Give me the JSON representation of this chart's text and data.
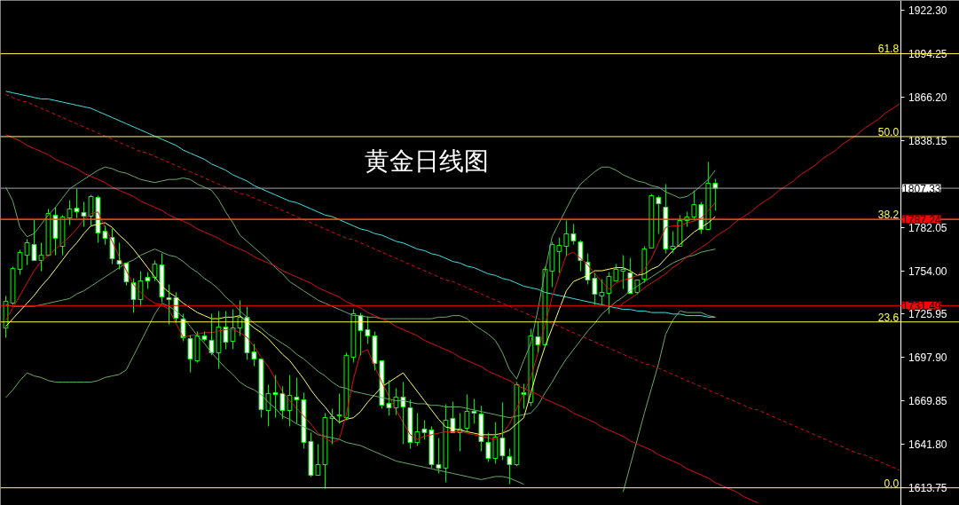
{
  "chart_data": {
    "type": "candlestick",
    "title": "黄金日线图",
    "color": "#00ff00",
    "tick_labels": "y",
    "grid": false,
    "ylim": [
      1602.3,
      1928.7
    ],
    "yticks": [
      {
        "value": 1922.3,
        "label": "1922.30"
      },
      {
        "value": 1894.25,
        "label": "1894.25"
      },
      {
        "value": 1866.2,
        "label": "1866.20"
      },
      {
        "value": 1838.15,
        "label": "1838.15"
      },
      {
        "value": 1782.05,
        "label": "1782.05"
      },
      {
        "value": 1754.0,
        "label": "1754.00"
      },
      {
        "value": 1725.95,
        "label": "1725.95"
      },
      {
        "value": 1697.9,
        "label": "1697.90"
      },
      {
        "value": 1669.85,
        "label": "1669.85"
      },
      {
        "value": 1641.8,
        "label": "1641.80"
      },
      {
        "value": 1613.75,
        "label": "1613.75"
      }
    ],
    "categories": [
      null,
      null,
      null,
      null,
      null,
      null,
      null,
      null,
      null,
      null,
      null,
      null,
      null,
      null,
      null,
      null,
      null,
      null,
      null,
      null,
      null,
      null,
      null,
      null,
      null,
      null,
      null,
      null,
      null,
      null,
      null,
      null,
      null,
      null,
      null,
      null,
      null,
      null,
      null,
      null,
      null,
      null,
      null,
      null,
      null,
      null,
      null,
      null,
      null,
      null,
      null,
      null,
      null,
      null,
      null,
      null,
      null,
      null,
      null,
      null,
      null,
      null,
      null,
      null,
      null,
      null,
      null,
      null,
      null,
      null,
      null,
      null,
      null,
      null,
      null,
      null,
      null,
      null,
      null,
      null,
      null,
      null,
      null,
      null,
      null,
      null,
      null,
      null,
      null,
      null,
      null,
      null,
      null,
      null,
      null,
      null,
      null,
      null,
      null,
      null,
      null,
      null,
      null,
      null,
      null,
      null,
      null,
      null,
      null,
      null,
      null,
      null,
      null,
      null,
      null,
      null,
      null,
      null,
      null,
      null,
      null,
      null,
      null,
      null,
      null,
      null,
      null
    ],
    "ohlc": [
      [
        1717.0,
        1737.7,
        1710.7,
        1734.2
      ],
      [
        1733.1,
        1756.6,
        1731.9,
        1755.4
      ],
      [
        1754.9,
        1767.5,
        1751.4,
        1765.8
      ],
      [
        1764.0,
        1774.4,
        1757.7,
        1772.1
      ],
      [
        1770.9,
        1787.0,
        1760.6,
        1760.6
      ],
      [
        1760.6,
        1772.1,
        1753.7,
        1764.0
      ],
      [
        1764.0,
        1793.9,
        1763.5,
        1791.0
      ],
      [
        1789.9,
        1795.0,
        1764.0,
        1774.9
      ],
      [
        1769.8,
        1789.9,
        1764.0,
        1788.7
      ],
      [
        1788.1,
        1799.6,
        1783.5,
        1793.9
      ],
      [
        1794.4,
        1807.0,
        1788.1,
        1792.1
      ],
      [
        1791.6,
        1798.5,
        1782.4,
        1789.3
      ],
      [
        1789.3,
        1803.0,
        1782.4,
        1801.9
      ],
      [
        1801.3,
        1802.5,
        1772.1,
        1778.4
      ],
      [
        1779.5,
        1783.0,
        1770.9,
        1774.9
      ],
      [
        1775.5,
        1781.3,
        1758.3,
        1761.7
      ],
      [
        1760.6,
        1772.1,
        1754.9,
        1758.3
      ],
      [
        1758.9,
        1758.9,
        1744.5,
        1746.8
      ],
      [
        1746.2,
        1749.1,
        1726.8,
        1735.4
      ],
      [
        1735.4,
        1753.7,
        1730.8,
        1747.4
      ],
      [
        1749.7,
        1753.1,
        1742.2,
        1747.4
      ],
      [
        1749.7,
        1760.6,
        1747.4,
        1758.3
      ],
      [
        1757.7,
        1765.2,
        1733.6,
        1737.1
      ],
      [
        1736.5,
        1745.1,
        1719.3,
        1735.4
      ],
      [
        1736.5,
        1740.0,
        1720.5,
        1723.3
      ],
      [
        1722.8,
        1726.2,
        1708.4,
        1710.7
      ],
      [
        1710.1,
        1712.4,
        1688.3,
        1696.9
      ],
      [
        1695.8,
        1714.7,
        1694.6,
        1711.9
      ],
      [
        1711.9,
        1714.7,
        1708.4,
        1709.6
      ],
      [
        1709.0,
        1726.2,
        1699.3,
        1701.0
      ],
      [
        1701.0,
        1727.9,
        1690.6,
        1717.6
      ],
      [
        1717.6,
        1727.9,
        1703.3,
        1707.8
      ],
      [
        1708.4,
        1729.1,
        1703.3,
        1717.0
      ],
      [
        1717.0,
        1734.8,
        1711.9,
        1723.9
      ],
      [
        1723.9,
        1730.8,
        1696.4,
        1701.0
      ],
      [
        1701.5,
        1706.7,
        1692.3,
        1696.9
      ],
      [
        1696.9,
        1696.9,
        1659.1,
        1664.3
      ],
      [
        1663.7,
        1680.3,
        1653.4,
        1674.6
      ],
      [
        1675.2,
        1686.6,
        1659.1,
        1674.0
      ],
      [
        1674.6,
        1679.2,
        1658.0,
        1663.7
      ],
      [
        1663.7,
        1686.6,
        1653.4,
        1673.4
      ],
      [
        1672.3,
        1684.9,
        1655.1,
        1670.6
      ],
      [
        1670.6,
        1675.2,
        1639.0,
        1643.0
      ],
      [
        1643.6,
        1649.4,
        1620.7,
        1621.8
      ],
      [
        1621.8,
        1641.9,
        1621.8,
        1628.7
      ],
      [
        1628.7,
        1662.0,
        1613.2,
        1659.1
      ],
      [
        1658.5,
        1664.8,
        1641.9,
        1659.6
      ],
      [
        1660.3,
        1674.6,
        1655.1,
        1660.8
      ],
      [
        1659.1,
        1701.0,
        1657.4,
        1699.3
      ],
      [
        1698.1,
        1729.1,
        1694.6,
        1726.2
      ],
      [
        1725.1,
        1726.8,
        1699.3,
        1715.3
      ],
      [
        1715.9,
        1724.5,
        1706.7,
        1711.9
      ],
      [
        1711.9,
        1714.7,
        1689.5,
        1694.1
      ],
      [
        1695.8,
        1695.8,
        1664.8,
        1667.1
      ],
      [
        1668.3,
        1683.2,
        1660.3,
        1665.4
      ],
      [
        1665.4,
        1678.0,
        1660.8,
        1672.3
      ],
      [
        1672.3,
        1682.1,
        1641.9,
        1666.0
      ],
      [
        1665.4,
        1670.6,
        1639.0,
        1643.0
      ],
      [
        1643.0,
        1662.0,
        1640.8,
        1649.9
      ],
      [
        1651.7,
        1657.4,
        1644.8,
        1649.4
      ],
      [
        1651.1,
        1653.4,
        1626.4,
        1628.7
      ],
      [
        1628.7,
        1645.9,
        1623.0,
        1626.4
      ],
      [
        1626.4,
        1667.7,
        1617.2,
        1657.4
      ],
      [
        1658.5,
        1669.4,
        1649.4,
        1649.4
      ],
      [
        1649.4,
        1662.0,
        1637.3,
        1651.7
      ],
      [
        1652.2,
        1674.0,
        1649.4,
        1663.1
      ],
      [
        1663.1,
        1671.2,
        1655.1,
        1662.0
      ],
      [
        1661.4,
        1666.6,
        1637.3,
        1643.6
      ],
      [
        1643.0,
        1649.4,
        1630.4,
        1632.7
      ],
      [
        1632.7,
        1656.2,
        1629.3,
        1646.5
      ],
      [
        1645.9,
        1668.9,
        1631.6,
        1634.4
      ],
      [
        1633.9,
        1639.0,
        1616.1,
        1628.7
      ],
      [
        1628.7,
        1682.1,
        1627.6,
        1680.3
      ],
      [
        1675.2,
        1680.9,
        1664.8,
        1674.0
      ],
      [
        1668.9,
        1716.5,
        1666.6,
        1711.9
      ],
      [
        1711.3,
        1721.1,
        1701.0,
        1706.1
      ],
      [
        1706.1,
        1756.6,
        1705.0,
        1754.9
      ],
      [
        1753.7,
        1772.7,
        1743.4,
        1770.9
      ],
      [
        1766.4,
        1775.5,
        1752.6,
        1770.4
      ],
      [
        1769.8,
        1786.4,
        1763.5,
        1777.8
      ],
      [
        1777.8,
        1784.2,
        1770.9,
        1773.3
      ],
      [
        1772.7,
        1773.8,
        1753.7,
        1760.6
      ],
      [
        1759.5,
        1765.2,
        1745.1,
        1748.0
      ],
      [
        1749.1,
        1752.6,
        1731.9,
        1738.8
      ],
      [
        1737.7,
        1748.6,
        1731.9,
        1740.0
      ],
      [
        1739.4,
        1753.1,
        1726.2,
        1750.3
      ],
      [
        1747.4,
        1758.3,
        1747.4,
        1754.9
      ],
      [
        1753.7,
        1764.0,
        1742.2,
        1754.9
      ],
      [
        1752.6,
        1762.4,
        1739.4,
        1739.4
      ],
      [
        1740.0,
        1748.0,
        1738.8,
        1748.0
      ],
      [
        1748.6,
        1769.8,
        1746.2,
        1768.1
      ],
      [
        1768.7,
        1803.6,
        1768.7,
        1802.5
      ],
      [
        1801.3,
        1802.5,
        1777.8,
        1797.3
      ],
      [
        1795.0,
        1810.0,
        1765.2,
        1768.1
      ],
      [
        1768.1,
        1779.5,
        1765.2,
        1769.8
      ],
      [
        1769.8,
        1789.9,
        1769.8,
        1786.4
      ],
      [
        1786.4,
        1792.1,
        1782.4,
        1788.7
      ],
      [
        1788.7,
        1805.9,
        1786.4,
        1796.7
      ],
      [
        1796.7,
        1798.5,
        1777.8,
        1780.7
      ],
      [
        1780.7,
        1824.3,
        1780.7,
        1810.5
      ],
      [
        1810.5,
        1813.4,
        1792.8,
        1807.33
      ],
      null,
      null,
      null,
      null,
      null,
      null,
      null,
      null,
      null,
      null,
      null,
      null,
      null,
      null,
      null,
      null,
      null,
      null,
      null,
      null,
      null,
      null,
      null,
      null,
      null,
      null
    ],
    "series": [
      {
        "type": "line",
        "color": "#40e0e0",
        "values": [
          1870,
          1869,
          1868,
          1867,
          1866,
          1865,
          1865,
          1864,
          1863,
          1862,
          1861,
          1860,
          1859,
          1857,
          1855,
          1853,
          1851,
          1849,
          1847,
          1845,
          1843,
          1841,
          1839,
          1837,
          1835,
          1832,
          1830,
          1828,
          1826,
          1823,
          1821,
          1819,
          1816,
          1814,
          1812,
          1809,
          1807,
          1805,
          1803,
          1801,
          1799,
          1798,
          1796,
          1794,
          1792,
          1790,
          1789,
          1787,
          1785,
          1783,
          1781,
          1780,
          1778,
          1777,
          1775,
          1773,
          1772,
          1770,
          1768,
          1767,
          1765,
          1764,
          1762,
          1760,
          1759,
          1757,
          1756,
          1754,
          1752,
          1751,
          1749,
          1748,
          1746,
          1744,
          1743,
          1742,
          1740,
          1739,
          1738,
          1737,
          1736,
          1735,
          1734,
          1733,
          1732,
          1731,
          1730,
          1729,
          1729,
          1728,
          1728,
          1727,
          1727,
          1727,
          1726,
          1726,
          1725,
          1725,
          1725,
          1724,
          1724,
          null,
          null,
          null,
          null,
          null,
          null,
          null,
          null,
          null,
          null,
          null,
          null,
          null,
          null,
          null,
          null,
          null,
          null,
          null,
          null,
          null,
          null,
          null,
          null,
          null,
          null
        ]
      },
      {
        "type": "line",
        "color": "#6aaa6a",
        "values": [
          1808,
          1799,
          1782,
          1776,
          1778,
          1784,
          1790,
          1795,
          1801,
          1807,
          1810,
          1813,
          1816,
          1819,
          1821,
          1820,
          1818,
          1817,
          1815,
          1813,
          1812,
          1811,
          1812,
          1813,
          1813,
          1814,
          1813,
          1810,
          1808,
          1806,
          1800,
          1792,
          1785,
          1777,
          1773,
          1769,
          1765,
          1761,
          1756,
          1752,
          1747,
          1744,
          1741,
          1738,
          1735,
          1733,
          1731,
          1729,
          1727,
          1725,
          1725,
          1724,
          1724,
          1723,
          1723,
          1723,
          1723,
          1723,
          1723,
          1723,
          1723,
          1724,
          1724,
          1725,
          1725,
          1723,
          1719,
          1716,
          1713,
          1709,
          1701,
          1690,
          1684,
          1696,
          1707,
          1729,
          1754,
          1776,
          1785,
          1794,
          1803,
          1810,
          1814,
          1818,
          1821,
          1821,
          1819,
          1816,
          1814,
          1812,
          1811,
          1809,
          1808,
          1805,
          1803,
          1801,
          1802,
          1805,
          1809,
          1813,
          1819,
          null,
          null,
          null,
          null,
          null,
          null,
          null,
          null,
          null,
          null,
          null,
          null,
          null,
          null,
          null,
          null,
          null,
          null,
          null,
          null,
          null,
          null,
          null,
          null,
          null,
          null
        ]
      },
      {
        "type": "line",
        "color": "#6aaa6a",
        "values": [
          1672,
          1677,
          1683,
          1688,
          1686,
          1685,
          1683,
          1682,
          1682,
          1682,
          1682,
          1682,
          1682,
          1683,
          1685,
          1686,
          1687,
          1690,
          1699,
          1708,
          1717,
          1726,
          1733,
          1731,
          1728,
          1724,
          1718,
          1712,
          1707,
          1701,
          1696,
          1691,
          1687,
          1682,
          1679,
          1677,
          1674,
          1669,
          1665,
          1660,
          1658,
          1655,
          1653,
          1651,
          1648,
          1647,
          1646,
          1645,
          1643,
          1642,
          1641,
          1639,
          1637,
          1635,
          1633,
          1631,
          1630,
          1629,
          1628,
          1627,
          1626,
          1625,
          1624,
          1623,
          1622,
          1621,
          1620,
          1619,
          1620,
          1621,
          1621,
          1620,
          1618,
          1616,
          null,
          null,
          null,
          null,
          null,
          null,
          null,
          null,
          null,
          null,
          null,
          null,
          null,
          1611,
          1628,
          1645,
          1662,
          1678,
          1694,
          1713,
          1722,
          1728,
          1727,
          1727,
          1727,
          1725,
          1724,
          null,
          null,
          null,
          null,
          null,
          null,
          null,
          null,
          null,
          null,
          null,
          null,
          null,
          null,
          null,
          null,
          null,
          null,
          null,
          null,
          null,
          null,
          null,
          null,
          null,
          null
        ]
      },
      {
        "type": "line",
        "color": "#6aaa6a",
        "values": [
          1732,
          1731,
          1731,
          1731,
          1731,
          1732,
          1733,
          1734,
          1735,
          1736,
          1739,
          1741,
          1744,
          1747,
          1750,
          1753,
          1756,
          1759,
          1761,
          1764,
          1766,
          1768,
          1766,
          1764,
          1763,
          1760,
          1756,
          1753,
          1749,
          1746,
          1742,
          1737,
          1733,
          1728,
          1724,
          1720,
          1717,
          1713,
          1710,
          1707,
          1704,
          1700,
          1697,
          1693,
          1689,
          1686,
          1682,
          1679,
          1678,
          1676,
          1675,
          1674,
          1673,
          1672,
          1671,
          1670,
          1670,
          1669,
          1668,
          1668,
          1667,
          1667,
          1666,
          1666,
          1666,
          1665,
          1664,
          1663,
          1662,
          1661,
          1660,
          1659,
          1660,
          1661,
          1662,
          1667,
          1675,
          1682,
          1690,
          1697,
          1703,
          1709,
          1715,
          1720,
          1726,
          1730,
          1734,
          1737,
          1741,
          1744,
          1747,
          1750,
          1753,
          1756,
          1759,
          1761,
          1763,
          1764,
          1766,
          1767,
          1768,
          null,
          null,
          null,
          null,
          null,
          null,
          null,
          null,
          null,
          null,
          null,
          null,
          null,
          null,
          null,
          null,
          null,
          null,
          null,
          null,
          null,
          null,
          null,
          null,
          null,
          null
        ]
      },
      {
        "type": "line",
        "color": "#ffff66",
        "values": [
          1718,
          1723,
          1728,
          1733,
          1738,
          1744,
          1749,
          1755,
          1761,
          1767,
          1772,
          1778,
          1783,
          1784,
          1785,
          1782,
          1777,
          1773,
          1768,
          1762,
          1756,
          1750,
          1744,
          1740,
          1737,
          1733,
          1730,
          1727,
          1725,
          1723,
          1723,
          1724,
          1724,
          1725,
          1721,
          1717,
          1714,
          1710,
          1705,
          1700,
          1696,
          1690,
          1684,
          1677,
          1671,
          1666,
          1660,
          1656,
          1658,
          1659,
          1663,
          1669,
          1674,
          1679,
          1682,
          1685,
          1688,
          1682,
          1676,
          1670,
          1664,
          1658,
          1653,
          1652,
          1651,
          1650,
          1649,
          1648,
          1648,
          1648,
          1649,
          1651,
          1655,
          1659,
          1675,
          1691,
          1705,
          1717,
          1729,
          1741,
          1747,
          1749,
          1751,
          1754,
          1754,
          1755,
          1756,
          1756,
          1754,
          1751,
          1752,
          1755,
          1757,
          1762,
          1767,
          1771,
          1775,
          1779,
          1782,
          1785,
          1789,
          null,
          null,
          null,
          null,
          null,
          null,
          null,
          null,
          null,
          null,
          null,
          null,
          null,
          null,
          null,
          null,
          null,
          null,
          null,
          null,
          null,
          null,
          null,
          null,
          null,
          null
        ]
      },
      {
        "type": "line",
        "color": "#dd1111",
        "values": [
          1722,
          1730,
          1738,
          1746,
          1754,
          1760,
          1764,
          1768,
          1772,
          1776,
          1781,
          1787,
          1791,
          1792,
          1782,
          1773,
          1763,
          1754,
          1745,
          1740,
          1736,
          1733,
          1732,
          1729,
          1720,
          1711,
          1712,
          1713,
          1714,
          1714,
          1715,
          1716,
          1716,
          1714,
          1711,
          1705,
          1698,
          1692,
          1684,
          1676,
          1670,
          1665,
          1660,
          1655,
          1649,
          1646,
          1643,
          1645,
          1661,
          1684,
          1701,
          1703,
          1692,
          1682,
          1673,
          1664,
          1656,
          1648,
          1645,
          1647,
          1648,
          1649,
          1650,
          1650,
          1650,
          1649,
          1648,
          1647,
          1646,
          1645,
          1649,
          1655,
          1665,
          1675,
          1685,
          1701,
          1719,
          1737,
          1751,
          1764,
          1766,
          1762,
          1758,
          1752,
          1747,
          1742,
          1746,
          1748,
          1749,
          1751,
          1755,
          1762,
          1772,
          1782,
          1783,
          1783,
          1785,
          1786,
          1788,
          1793,
          1798,
          null,
          null,
          null,
          null,
          null,
          null,
          null,
          null,
          null,
          null,
          null,
          null,
          null,
          null,
          null,
          null,
          null,
          null,
          null,
          null,
          null,
          null,
          null,
          null,
          null,
          null
        ]
      },
      {
        "type": "line",
        "color": "#dd1111",
        "values": [
          1842,
          1840,
          1838,
          1835,
          1833,
          1831,
          1829,
          1826,
          1824,
          1822,
          1820,
          1817,
          1815,
          1813,
          1811,
          1808,
          1806,
          1804,
          1802,
          1799,
          1797,
          1795,
          1793,
          1790,
          1788,
          1786,
          1784,
          1781,
          1779,
          1777,
          1775,
          1772,
          1770,
          1768,
          1766,
          1763,
          1761,
          1759,
          1757,
          1754,
          1752,
          1750,
          1748,
          1746,
          1743,
          1741,
          1739,
          1737,
          1734,
          1732,
          1730,
          1727,
          1725,
          1723,
          1721,
          1718,
          1716,
          1714,
          1712,
          1709,
          1707,
          1705,
          1703,
          1701,
          1698,
          1696,
          1694,
          1692,
          1689,
          1687,
          1685,
          1683,
          1680,
          1678,
          1676,
          1674,
          1671,
          1669,
          1667,
          1665,
          1662,
          1660,
          1658,
          1656,
          1653,
          1651,
          1649,
          1647,
          1644,
          1642,
          1640,
          1638,
          1635,
          1633,
          1631,
          1629,
          1626,
          1624,
          1622,
          1620,
          1617,
          1615,
          1613,
          1611,
          1608,
          1606,
          1604,
          null,
          null,
          null,
          null,
          null,
          null,
          null,
          null,
          null,
          null,
          null,
          null,
          null,
          null,
          null,
          null,
          null,
          null,
          null,
          null
        ]
      },
      {
        "type": "line",
        "color": "#dd1111",
        "line_style": "dashed",
        "values": [
          1868,
          1866,
          1864,
          1863,
          1861,
          1859,
          1857,
          1855,
          1853,
          1851,
          1849,
          1847,
          1845,
          1843,
          1841,
          1839,
          1837,
          1835,
          1833,
          1831,
          1830,
          1828,
          1826,
          1824,
          1822,
          1820,
          1818,
          1816,
          1814,
          1812,
          1810,
          1808,
          1806,
          1804,
          1803,
          1801,
          1799,
          1797,
          1795,
          1793,
          1791,
          1789,
          1787,
          1785,
          1783,
          1781,
          1779,
          1777,
          1775,
          1774,
          1772,
          1770,
          1768,
          1766,
          1764,
          1762,
          1760,
          1758,
          1756,
          1754,
          1752,
          1750,
          1748,
          1747,
          1745,
          1743,
          1741,
          1739,
          1737,
          1735,
          1733,
          1731,
          1729,
          1727,
          1725,
          1723,
          1721,
          1720,
          1718,
          1716,
          1714,
          1712,
          1710,
          1708,
          1706,
          1704,
          1702,
          1700,
          1698,
          1696,
          1694,
          1693,
          1691,
          1689,
          1687,
          1685,
          1683,
          1681,
          1679,
          1677,
          1675,
          1673,
          1671,
          1669,
          1667,
          1665,
          1664,
          1662,
          1660,
          1658,
          1656,
          1654,
          1652,
          1650,
          1648,
          1646,
          1644,
          1642,
          1640,
          1638,
          1636,
          1635,
          1633,
          1631,
          1629,
          1627,
          1625
        ]
      },
      {
        "type": "line",
        "color": "#dd1111",
        "values": [
          null,
          null,
          null,
          null,
          null,
          null,
          null,
          null,
          null,
          null,
          null,
          null,
          null,
          null,
          null,
          null,
          null,
          null,
          null,
          null,
          null,
          null,
          null,
          null,
          null,
          null,
          null,
          null,
          null,
          null,
          null,
          null,
          null,
          null,
          null,
          null,
          null,
          null,
          null,
          null,
          null,
          null,
          null,
          null,
          null,
          null,
          null,
          null,
          null,
          null,
          null,
          null,
          null,
          null,
          null,
          null,
          null,
          null,
          null,
          null,
          null,
          null,
          null,
          null,
          null,
          null,
          null,
          null,
          null,
          null,
          null,
          null,
          null,
          null,
          null,
          null,
          null,
          null,
          null,
          null,
          null,
          null,
          null,
          null,
          null,
          null,
          1729,
          1733,
          1736,
          1739,
          1743,
          1746,
          1749,
          1752,
          1756,
          1759,
          1763,
          1766,
          1769,
          1772,
          1776,
          1779,
          1782,
          1786,
          1789,
          1792,
          1796,
          1799,
          1802,
          1806,
          1809,
          1812,
          1816,
          1819,
          1822,
          1826,
          1829,
          1832,
          1836,
          1839,
          1842,
          1846,
          1849,
          1852,
          1856,
          1859,
          1862
        ]
      }
    ],
    "ref_lines": [
      {
        "axis": "y",
        "value": 1894.3,
        "color": "#ffff44"
      },
      {
        "axis": "y",
        "value": 1840.7,
        "color": "#ffff44"
      },
      {
        "axis": "y",
        "value": 1787.2,
        "color": "#ffff44"
      },
      {
        "axis": "y",
        "value": 1720.9,
        "color": "#ffff44"
      },
      {
        "axis": "y",
        "value": 1613.7,
        "color": "#ffff44"
      },
      {
        "axis": "y",
        "value": 1807.33,
        "label": "1807.33",
        "color": "#a0a0b0"
      },
      {
        "axis": "y",
        "value": 1787.24,
        "label": "1787.24",
        "color": "#ff0000"
      },
      {
        "axis": "y",
        "value": 1731.49,
        "label": "1731.49",
        "color": "#ff0000"
      }
    ],
    "annotations": [
      {
        "text": "61.8",
        "y": 1894.3
      },
      {
        "text": "50.0",
        "y": 1840.7
      },
      {
        "text": "38.2",
        "y": 1787.2
      },
      {
        "text": "23.6",
        "y": 1720.9
      },
      {
        "text": "0.0",
        "y": 1613.7
      }
    ]
  }
}
